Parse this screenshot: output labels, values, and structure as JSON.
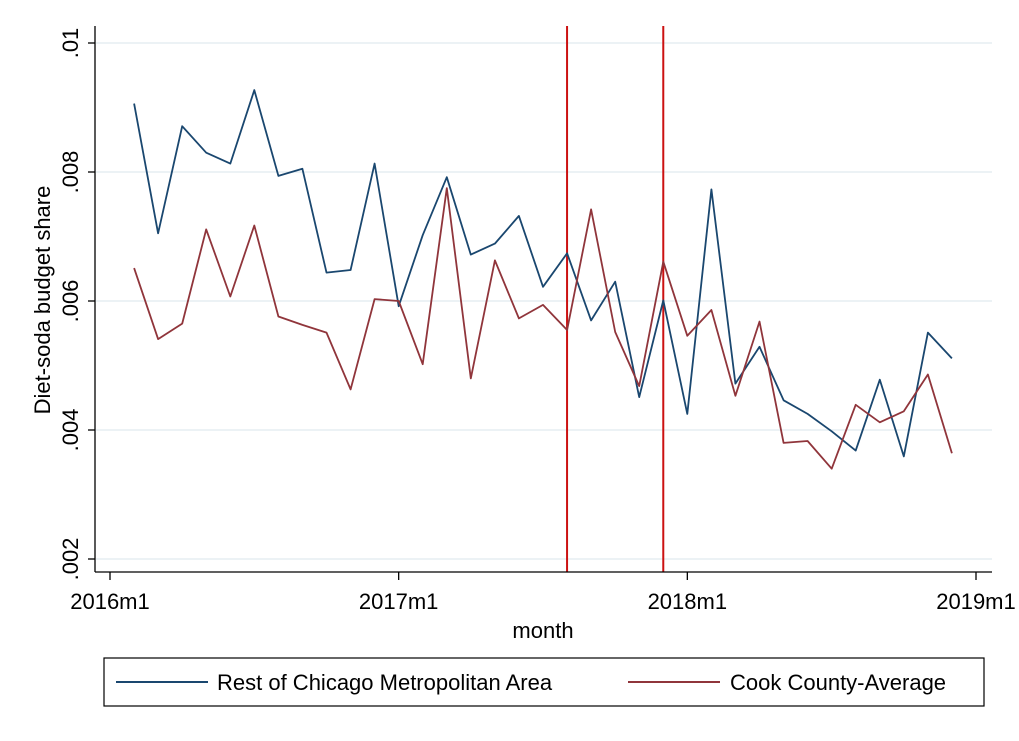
{
  "chart_data": {
    "type": "line",
    "xlabel": "month",
    "ylabel": "Diet-soda budget share",
    "x_ticks": [
      "2016m1",
      "2017m1",
      "2018m1",
      "2019m1"
    ],
    "y_ticks": [
      ".002",
      ".004",
      ".006",
      ".008",
      ".01"
    ],
    "xlim": [
      2016.0,
      2019.0
    ],
    "ylim": [
      0.0018,
      0.0102
    ],
    "grid": "horizontal",
    "legend_position": "bottom",
    "vertical_lines": [
      "2017m8",
      "2017m12"
    ],
    "x": [
      "2016m2",
      "2016m3",
      "2016m4",
      "2016m5",
      "2016m6",
      "2016m7",
      "2016m8",
      "2016m9",
      "2016m10",
      "2016m11",
      "2016m12",
      "2017m1",
      "2017m2",
      "2017m3",
      "2017m4",
      "2017m5",
      "2017m6",
      "2017m7",
      "2017m8",
      "2017m9",
      "2017m10",
      "2017m11",
      "2017m12",
      "2018m1",
      "2018m2",
      "2018m3",
      "2018m4",
      "2018m5",
      "2018m6",
      "2018m7",
      "2018m8",
      "2018m9",
      "2018m10",
      "2018m11",
      "2018m12"
    ],
    "series": [
      {
        "name": "Rest of Chicago Metropolitan Area",
        "color": "#1a476f",
        "values": [
          0.00906,
          0.00705,
          0.00871,
          0.0083,
          0.00813,
          0.00927,
          0.00794,
          0.00805,
          0.00644,
          0.00648,
          0.00813,
          0.00592,
          0.00702,
          0.00792,
          0.00672,
          0.00689,
          0.00732,
          0.00622,
          0.00674,
          0.0057,
          0.0063,
          0.00451,
          0.00601,
          0.00425,
          0.00773,
          0.00472,
          0.00529,
          0.00446,
          0.00425,
          0.00398,
          0.00368,
          0.00478,
          0.00359,
          0.00551,
          0.00511
        ]
      },
      {
        "name": "Cook County-Average",
        "color": "#90353b",
        "values": [
          0.00651,
          0.00541,
          0.00565,
          0.00711,
          0.00607,
          0.00717,
          0.00576,
          0.00563,
          0.00551,
          0.00463,
          0.00603,
          0.006,
          0.00502,
          0.00775,
          0.0048,
          0.00663,
          0.00573,
          0.00594,
          0.00555,
          0.00742,
          0.00552,
          0.00468,
          0.00661,
          0.00546,
          0.00586,
          0.00453,
          0.00568,
          0.0038,
          0.00383,
          0.0034,
          0.00439,
          0.00412,
          0.00429,
          0.00486,
          0.00364
        ]
      }
    ],
    "reference_line_color": "#cc1111"
  }
}
